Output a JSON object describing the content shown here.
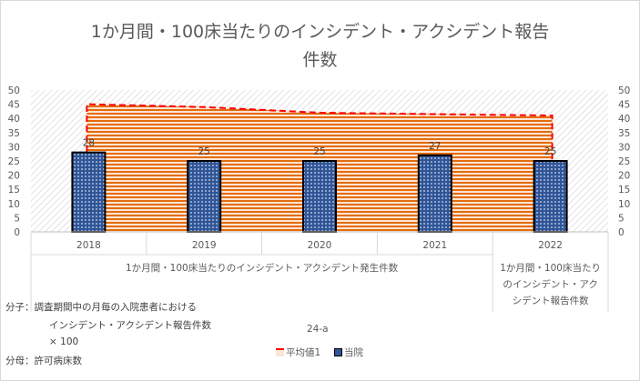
{
  "chart_data": {
    "type": "bar",
    "title_line1": "1か月間・100床当たりのインシデント・アクシデント報告",
    "title_line2": "件数",
    "categories": [
      "2018",
      "2019",
      "2020",
      "2021",
      "2022"
    ],
    "group_labels": [
      "1か月間・100床当たりのインシデント・アクシデント発生件数",
      "1か月間・100床当たりのインシデント・アクシデント報告件数"
    ],
    "series": [
      {
        "name": "平均値1",
        "kind": "area",
        "values": [
          45,
          44,
          42,
          41.5,
          41
        ],
        "color": "#e46c0a",
        "line_color": "#ff0000"
      },
      {
        "name": "当院",
        "kind": "bar",
        "values": [
          28,
          25,
          25,
          27,
          25
        ],
        "color": "#2f5597"
      }
    ],
    "data_labels": [
      "28",
      "25",
      "25",
      "27",
      "25"
    ],
    "ylim": [
      0,
      50
    ],
    "yticks": [
      "0",
      "5",
      "10",
      "15",
      "20",
      "25",
      "30",
      "35",
      "40",
      "45",
      "50"
    ],
    "secondary_axis": true,
    "grid": false,
    "legend_position": "bottom",
    "source_label": "24-a"
  },
  "notes": {
    "numerator_label": "分子：調査期間中の月毎の入院患者における",
    "numerator_line2": "インシデント・アクシデント報告件数",
    "multiplier": "× 100",
    "denominator_label": "分母：許可病床数"
  }
}
